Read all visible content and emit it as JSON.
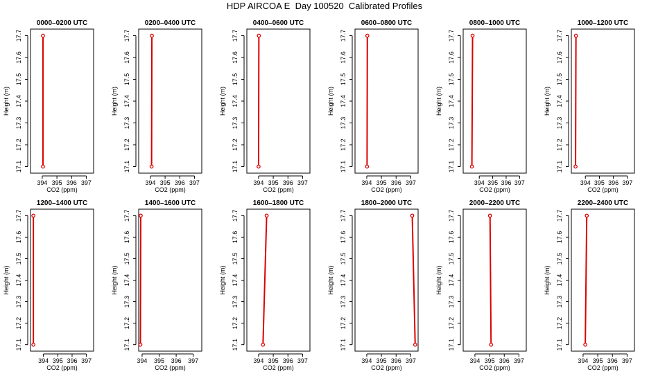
{
  "figure": {
    "title": "HDP AIRCOA E  Day 100520  Calibrated Profiles"
  },
  "style": {
    "line_color": "#dd0000",
    "marker_color": "#dd0000",
    "axis_color": "#000000"
  },
  "chart_data": [
    {
      "type": "line",
      "title": "0000–0200 UTC",
      "xlabel": "CO2 (ppm)",
      "ylabel": "Height (m)",
      "xlim": [
        393.2,
        397.5
      ],
      "ylim": [
        17.07,
        17.73
      ],
      "xticks": [
        394,
        395,
        396,
        397
      ],
      "yticks": [
        17.1,
        17.2,
        17.3,
        17.4,
        17.5,
        17.6,
        17.7
      ],
      "series": [
        {
          "x": [
            394.05,
            394.05
          ],
          "y": [
            17.1,
            17.7
          ],
          "markers": "endpoints"
        }
      ]
    },
    {
      "type": "line",
      "title": "0200–0400 UTC",
      "xlabel": "CO2 (ppm)",
      "ylabel": "Height (m)",
      "xlim": [
        393.2,
        397.5
      ],
      "ylim": [
        17.07,
        17.73
      ],
      "xticks": [
        394,
        395,
        396,
        397
      ],
      "yticks": [
        17.1,
        17.2,
        17.3,
        17.4,
        17.5,
        17.6,
        17.7
      ],
      "series": [
        {
          "x": [
            394.08,
            394.1
          ],
          "y": [
            17.1,
            17.7
          ],
          "markers": "endpoints"
        }
      ]
    },
    {
      "type": "line",
      "title": "0400–0600 UTC",
      "xlabel": "CO2 (ppm)",
      "ylabel": "Height (m)",
      "xlim": [
        393.2,
        397.5
      ],
      "ylim": [
        17.07,
        17.73
      ],
      "xticks": [
        394,
        395,
        396,
        397
      ],
      "yticks": [
        17.1,
        17.2,
        17.3,
        17.4,
        17.5,
        17.6,
        17.7
      ],
      "series": [
        {
          "x": [
            394.0,
            394.02
          ],
          "y": [
            17.1,
            17.7
          ],
          "markers": "endpoints"
        }
      ]
    },
    {
      "type": "line",
      "title": "0600–0800 UTC",
      "xlabel": "CO2 (ppm)",
      "ylabel": "Height (m)",
      "xlim": [
        393.2,
        397.5
      ],
      "ylim": [
        17.07,
        17.73
      ],
      "xticks": [
        394,
        395,
        396,
        397
      ],
      "yticks": [
        17.1,
        17.2,
        17.3,
        17.4,
        17.5,
        17.6,
        17.7
      ],
      "series": [
        {
          "x": [
            394.02,
            394.04
          ],
          "y": [
            17.1,
            17.7
          ],
          "markers": "endpoints"
        }
      ]
    },
    {
      "type": "line",
      "title": "0800–1000 UTC",
      "xlabel": "CO2 (ppm)",
      "ylabel": "Height (m)",
      "xlim": [
        392.8,
        397.5
      ],
      "ylim": [
        17.07,
        17.73
      ],
      "xticks": [
        394,
        395,
        396,
        397
      ],
      "yticks": [
        17.1,
        17.2,
        17.3,
        17.4,
        17.5,
        17.6,
        17.7
      ],
      "series": [
        {
          "x": [
            393.45,
            393.5
          ],
          "y": [
            17.1,
            17.7
          ],
          "markers": "endpoints"
        }
      ]
    },
    {
      "type": "line",
      "title": "1000–1200 UTC",
      "xlabel": "CO2 (ppm)",
      "ylabel": "Height (m)",
      "xlim": [
        393.0,
        397.5
      ],
      "ylim": [
        17.07,
        17.73
      ],
      "xticks": [
        394,
        395,
        396,
        397
      ],
      "yticks": [
        17.1,
        17.2,
        17.3,
        17.4,
        17.5,
        17.6,
        17.7
      ],
      "series": [
        {
          "x": [
            393.3,
            393.33
          ],
          "y": [
            17.1,
            17.7
          ],
          "markers": "endpoints"
        }
      ]
    },
    {
      "type": "line",
      "title": "1200–1400 UTC",
      "xlabel": "CO2 (ppm)",
      "ylabel": "Height (m)",
      "xlim": [
        393.1,
        397.5
      ],
      "ylim": [
        17.07,
        17.73
      ],
      "xticks": [
        394,
        395,
        396,
        397
      ],
      "yticks": [
        17.1,
        17.2,
        17.3,
        17.4,
        17.5,
        17.6,
        17.7
      ],
      "series": [
        {
          "x": [
            393.3,
            393.3
          ],
          "y": [
            17.1,
            17.7
          ],
          "markers": "endpoints"
        }
      ]
    },
    {
      "type": "line",
      "title": "1400–1600 UTC",
      "xlabel": "CO2 (ppm)",
      "ylabel": "Height (m)",
      "xlim": [
        393.8,
        397.5
      ],
      "ylim": [
        17.07,
        17.73
      ],
      "xticks": [
        394,
        395,
        396,
        397
      ],
      "yticks": [
        17.1,
        17.2,
        17.3,
        17.4,
        17.5,
        17.6,
        17.7
      ],
      "series": [
        {
          "x": [
            393.9,
            393.92
          ],
          "y": [
            17.1,
            17.7
          ],
          "markers": "endpoints"
        }
      ]
    },
    {
      "type": "line",
      "title": "1600–1800 UTC",
      "xlabel": "CO2 (ppm)",
      "ylabel": "Height (m)",
      "xlim": [
        393.2,
        397.5
      ],
      "ylim": [
        17.07,
        17.73
      ],
      "xticks": [
        394,
        395,
        396,
        397
      ],
      "yticks": [
        17.1,
        17.2,
        17.3,
        17.4,
        17.5,
        17.6,
        17.7
      ],
      "series": [
        {
          "x": [
            394.3,
            394.55
          ],
          "y": [
            17.1,
            17.7
          ],
          "markers": "endpoints"
        }
      ]
    },
    {
      "type": "line",
      "title": "1800–2000 UTC",
      "xlabel": "CO2 (ppm)",
      "ylabel": "Height (m)",
      "xlim": [
        393.2,
        397.5
      ],
      "ylim": [
        17.07,
        17.73
      ],
      "xticks": [
        394,
        395,
        396,
        397
      ],
      "yticks": [
        17.1,
        17.2,
        17.3,
        17.4,
        17.5,
        17.6,
        17.7
      ],
      "series": [
        {
          "x": [
            397.3,
            397.1
          ],
          "y": [
            17.1,
            17.7
          ],
          "markers": "endpoints"
        }
      ]
    },
    {
      "type": "line",
      "title": "2000–2200 UTC",
      "xlabel": "CO2 (ppm)",
      "ylabel": "Height (m)",
      "xlim": [
        393.2,
        397.5
      ],
      "ylim": [
        17.07,
        17.73
      ],
      "xticks": [
        394,
        395,
        396,
        397
      ],
      "yticks": [
        17.1,
        17.2,
        17.3,
        17.4,
        17.5,
        17.6,
        17.7
      ],
      "series": [
        {
          "x": [
            395.1,
            395.03
          ],
          "y": [
            17.1,
            17.7
          ],
          "markers": "endpoints"
        }
      ]
    },
    {
      "type": "line",
      "title": "2200–2400 UTC",
      "xlabel": "CO2 (ppm)",
      "ylabel": "Height (m)",
      "xlim": [
        393.2,
        397.5
      ],
      "ylim": [
        17.07,
        17.73
      ],
      "xticks": [
        394,
        395,
        396,
        397
      ],
      "yticks": [
        17.1,
        17.2,
        17.3,
        17.4,
        17.5,
        17.6,
        17.7
      ],
      "series": [
        {
          "x": [
            394.15,
            394.25
          ],
          "y": [
            17.1,
            17.7
          ],
          "markers": "endpoints"
        }
      ]
    }
  ]
}
